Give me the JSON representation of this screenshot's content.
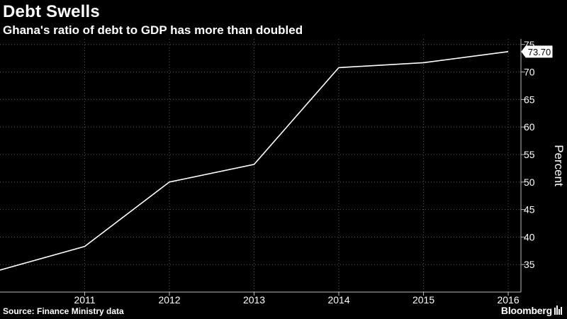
{
  "header": {
    "title": "Debt Swells",
    "subtitle": "Ghana's ratio of debt to GDP has more than doubled"
  },
  "footer": {
    "source": "Source: Finance Ministry data",
    "brand": "Bloomberg"
  },
  "colors": {
    "background": "#000000",
    "line": "#ffffff",
    "grid": "#5a5a5a",
    "text": "#ffffff"
  },
  "chart_data": {
    "type": "line",
    "title": "Debt Swells",
    "subtitle": "Ghana's ratio of debt to GDP has more than doubled",
    "xlabel": "",
    "ylabel": "Percent",
    "x": [
      2010,
      2011,
      2012,
      2013,
      2014,
      2015,
      2016
    ],
    "series": [
      {
        "values": [
          34.0,
          38.3,
          50.0,
          53.2,
          70.8,
          71.7,
          73.7
        ]
      }
    ],
    "x_ticks": [
      "2011",
      "2012",
      "2013",
      "2014",
      "2015",
      "2016"
    ],
    "y_ticks": [
      "35",
      "40",
      "45",
      "50",
      "55",
      "60",
      "65",
      "70",
      "75"
    ],
    "ylim": [
      30,
      76
    ],
    "xlim": [
      2010,
      2016.15
    ],
    "grid": true,
    "grid_style": "dotted",
    "last_value_label": "73.70"
  }
}
